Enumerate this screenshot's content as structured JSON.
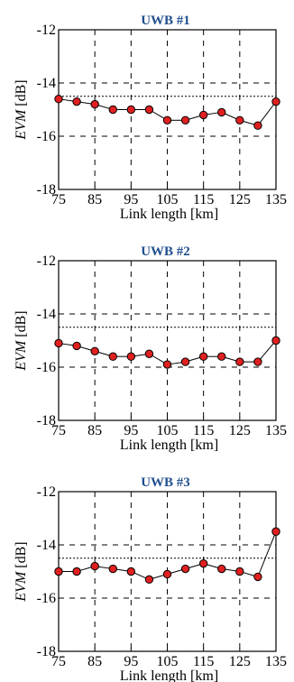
{
  "chart_data": [
    {
      "type": "line",
      "title": "UWB #1",
      "xlabel": "Link length [km]",
      "ylabel": "EVM [dB]",
      "xlim": [
        75,
        135
      ],
      "ylim": [
        -18,
        -12
      ],
      "xticks": [
        75,
        85,
        95,
        105,
        115,
        125,
        135
      ],
      "yticks": [
        -12,
        -14,
        -16,
        -18
      ],
      "grid": true,
      "reference_line": -14.5,
      "x": [
        75,
        80,
        85,
        90,
        95,
        100,
        105,
        110,
        115,
        120,
        125,
        130,
        135
      ],
      "y": [
        -14.6,
        -14.7,
        -14.8,
        -15.0,
        -15.0,
        -15.0,
        -15.4,
        -15.4,
        -15.2,
        -15.1,
        -15.4,
        -15.6,
        -14.7
      ]
    },
    {
      "type": "line",
      "title": "UWB #2",
      "xlabel": "Link length [km]",
      "ylabel": "EVM [dB]",
      "xlim": [
        75,
        135
      ],
      "ylim": [
        -18,
        -12
      ],
      "xticks": [
        75,
        85,
        95,
        105,
        115,
        125,
        135
      ],
      "yticks": [
        -12,
        -14,
        -16,
        -18
      ],
      "grid": true,
      "reference_line": -14.5,
      "x": [
        75,
        80,
        85,
        90,
        95,
        100,
        105,
        110,
        115,
        120,
        125,
        130,
        135
      ],
      "y": [
        -15.1,
        -15.2,
        -15.4,
        -15.6,
        -15.6,
        -15.5,
        -15.9,
        -15.8,
        -15.6,
        -15.6,
        -15.8,
        -15.8,
        -15.0
      ]
    },
    {
      "type": "line",
      "title": "UWB #3",
      "xlabel": "Link length [km]",
      "ylabel": "EVM [dB]",
      "xlim": [
        75,
        135
      ],
      "ylim": [
        -18,
        -12
      ],
      "xticks": [
        75,
        85,
        95,
        105,
        115,
        125,
        135
      ],
      "yticks": [
        -12,
        -14,
        -16,
        -18
      ],
      "grid": true,
      "reference_line": -14.5,
      "x": [
        75,
        80,
        85,
        90,
        95,
        100,
        105,
        110,
        115,
        120,
        125,
        130,
        135
      ],
      "y": [
        -15.0,
        -15.0,
        -14.8,
        -14.9,
        -15.0,
        -15.3,
        -15.1,
        -14.9,
        -14.7,
        -14.9,
        -15.0,
        -15.2,
        -13.5
      ]
    }
  ]
}
